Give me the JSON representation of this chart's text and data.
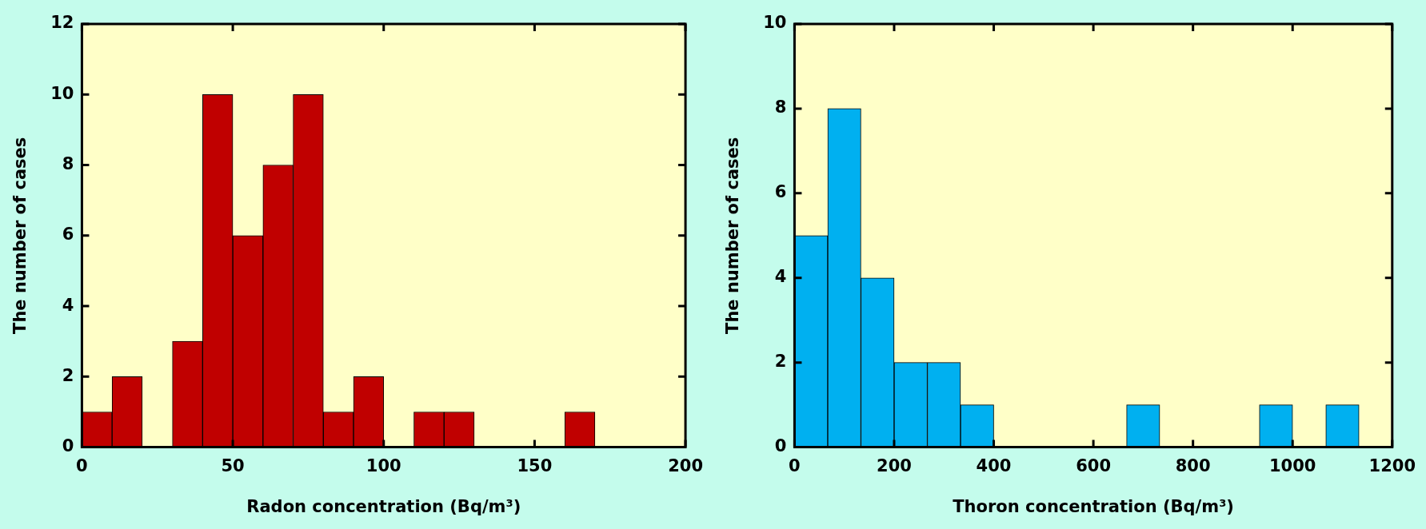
{
  "chart_data": [
    {
      "type": "histogram",
      "bins": [
        0,
        10,
        20,
        30,
        40,
        50,
        60,
        70,
        80,
        90,
        100,
        110,
        120,
        130,
        140,
        150,
        160,
        170,
        180,
        190,
        200
      ],
      "values": [
        1,
        2,
        0,
        3,
        10,
        6,
        8,
        10,
        1,
        2,
        0,
        1,
        1,
        0,
        0,
        0,
        1,
        0,
        0,
        0
      ],
      "color": "#c00000",
      "xlabel": "Radon concentration (Bq/m³)",
      "ylabel": "The number of cases",
      "xlim": [
        0,
        200
      ],
      "xticks": [
        0,
        50,
        100,
        150,
        200
      ],
      "ylim": [
        0,
        12
      ],
      "yticks": [
        0,
        2,
        4,
        6,
        8,
        10,
        12
      ],
      "grid": false,
      "legend": false
    },
    {
      "type": "histogram",
      "bins": [
        0,
        66.7,
        133.3,
        200,
        266.7,
        333.3,
        400,
        466.7,
        533.3,
        600,
        666.7,
        733.3,
        800,
        866.7,
        933.3,
        1000,
        1066.7,
        1133.3,
        1200
      ],
      "values": [
        5,
        8,
        4,
        2,
        2,
        1,
        0,
        0,
        0,
        0,
        1,
        0,
        0,
        0,
        1,
        0,
        1,
        0
      ],
      "color": "#00b0f0",
      "xlabel": "Thoron concentration (Bq/m³)",
      "ylabel": "The number of cases",
      "xlim": [
        0,
        1200
      ],
      "xticks": [
        0,
        200,
        400,
        600,
        800,
        1000,
        1200
      ],
      "ylim": [
        0,
        10
      ],
      "yticks": [
        0,
        2,
        4,
        6,
        8,
        10
      ],
      "grid": false,
      "legend": false
    }
  ]
}
